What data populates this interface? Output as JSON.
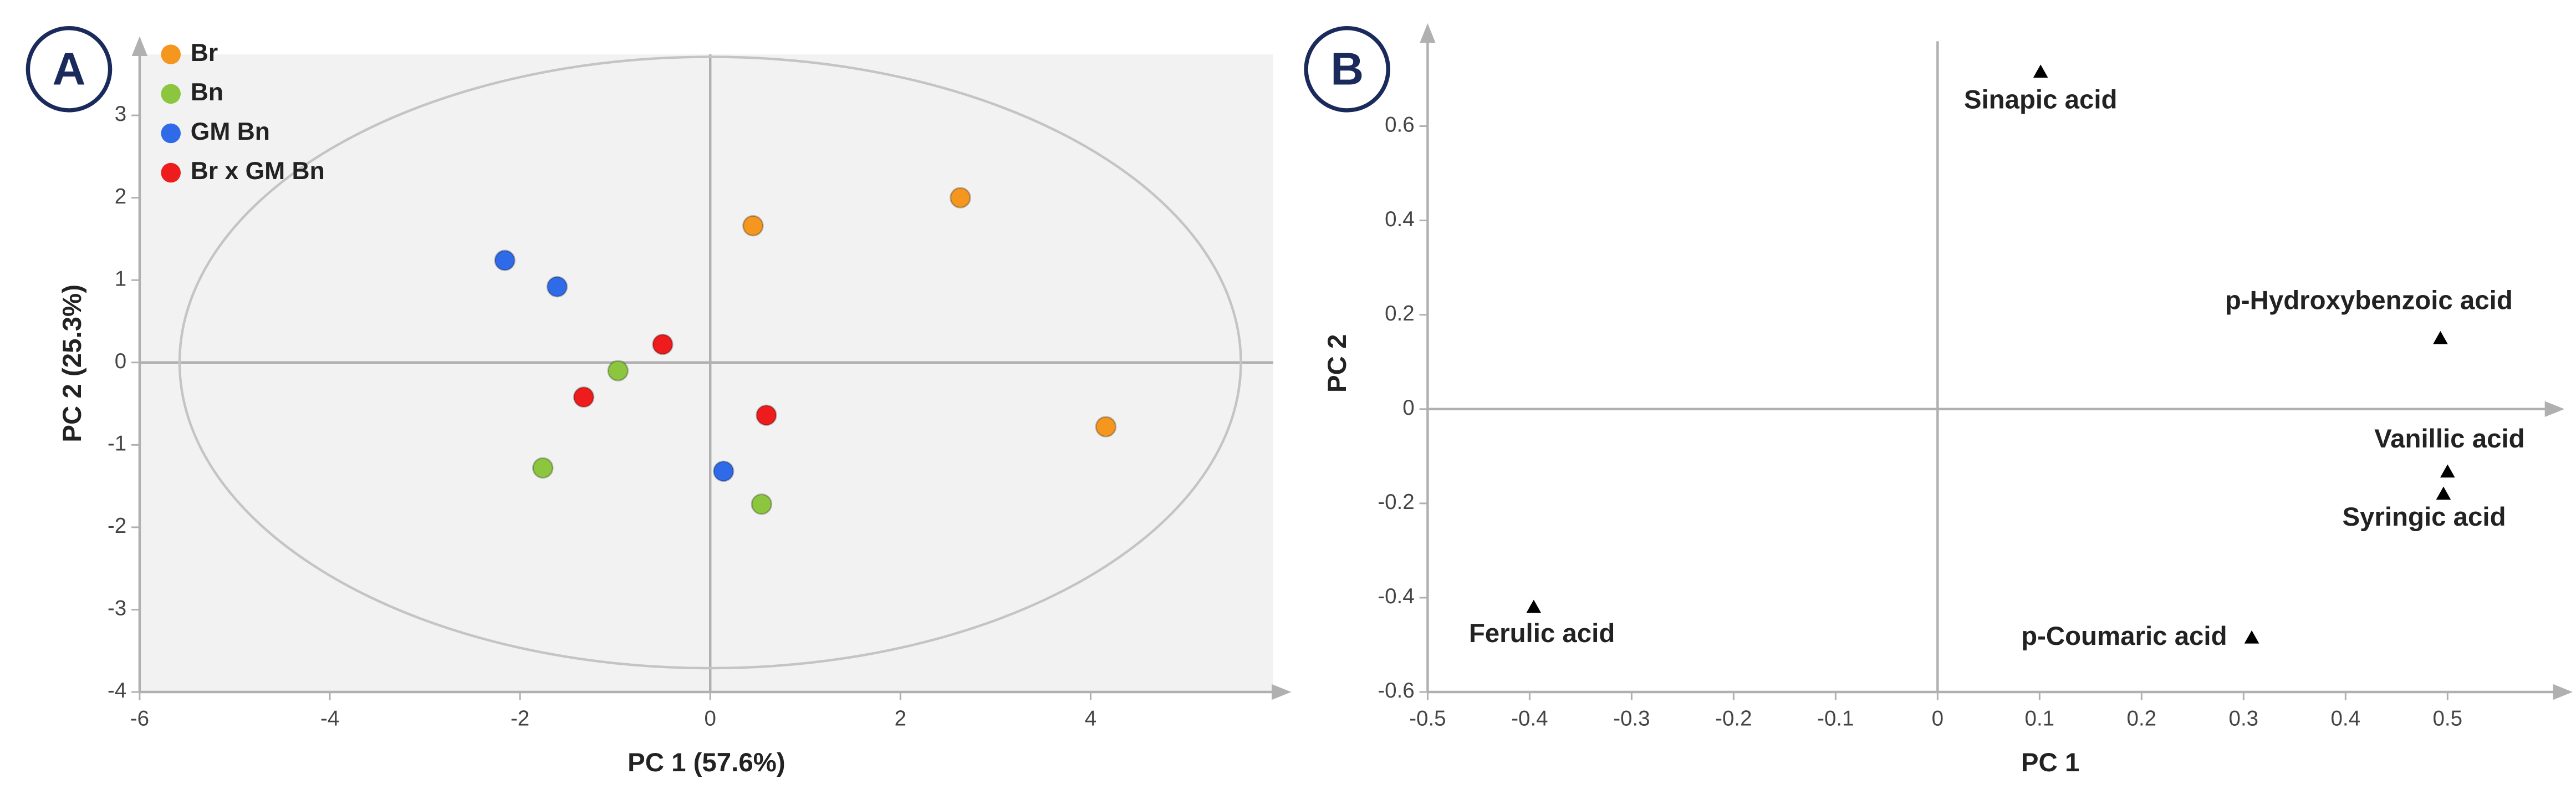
{
  "chart_data": [
    {
      "type": "scatter",
      "panel_label": "A",
      "xlabel": "PC 1 (57.6%)",
      "ylabel": "PC 2 (25.3%)",
      "xlim": [
        -6,
        5.92
      ],
      "ylim": [
        -4,
        3.74
      ],
      "xticks": [
        -6,
        -4,
        -2,
        0,
        2,
        4
      ],
      "yticks": [
        -4,
        -3,
        -2,
        -1,
        0,
        1,
        2,
        3
      ],
      "background": "#f2f2f2",
      "legend": "upper left",
      "marker": "circle",
      "series": [
        {
          "name": "Br",
          "color": "#f5961e",
          "x": [
            0.45,
            2.63,
            4.16
          ],
          "y": [
            1.66,
            2.0,
            -0.78
          ]
        },
        {
          "name": "Bn",
          "color": "#8cc63f",
          "x": [
            -0.97,
            -1.76,
            0.54
          ],
          "y": [
            -0.1,
            -1.28,
            -1.72
          ]
        },
        {
          "name": "GM Bn",
          "color": "#2f6be8",
          "x": [
            -2.16,
            -1.61,
            0.14
          ],
          "y": [
            1.24,
            0.92,
            -1.32
          ]
        },
        {
          "name": "Br x GM Bn",
          "color": "#ee1c1c",
          "x": [
            -0.5,
            -1.33,
            0.59
          ],
          "y": [
            0.22,
            -0.42,
            -0.64
          ]
        }
      ]
    },
    {
      "type": "scatter",
      "panel_label": "B",
      "xlabel": "PC 1",
      "ylabel": "PC 2",
      "xlim": [
        -0.5,
        0.605
      ],
      "ylim": [
        -0.6,
        0.78
      ],
      "xticks": [
        -0.5,
        -0.4,
        -0.3,
        -0.2,
        -0.1,
        0,
        0.1,
        0.2,
        0.3,
        0.4,
        0.5
      ],
      "yticks": [
        -0.6,
        -0.4,
        -0.2,
        0,
        0.2,
        0.4,
        0.6
      ],
      "background": "#ffffff",
      "marker": "triangle",
      "series": [
        {
          "color": "#000000",
          "x": [
            0.101,
            0.493,
            0.5,
            0.496,
            -0.396,
            0.308
          ],
          "y": [
            0.715,
            0.15,
            -0.133,
            -0.18,
            -0.42,
            -0.485
          ],
          "labels": [
            "Sinapic acid",
            "p-Hydroxybenzoic acid",
            "Vanillic acid",
            "Syringic acid",
            "Ferulic acid",
            "p-Coumaric acid"
          ]
        }
      ]
    }
  ]
}
